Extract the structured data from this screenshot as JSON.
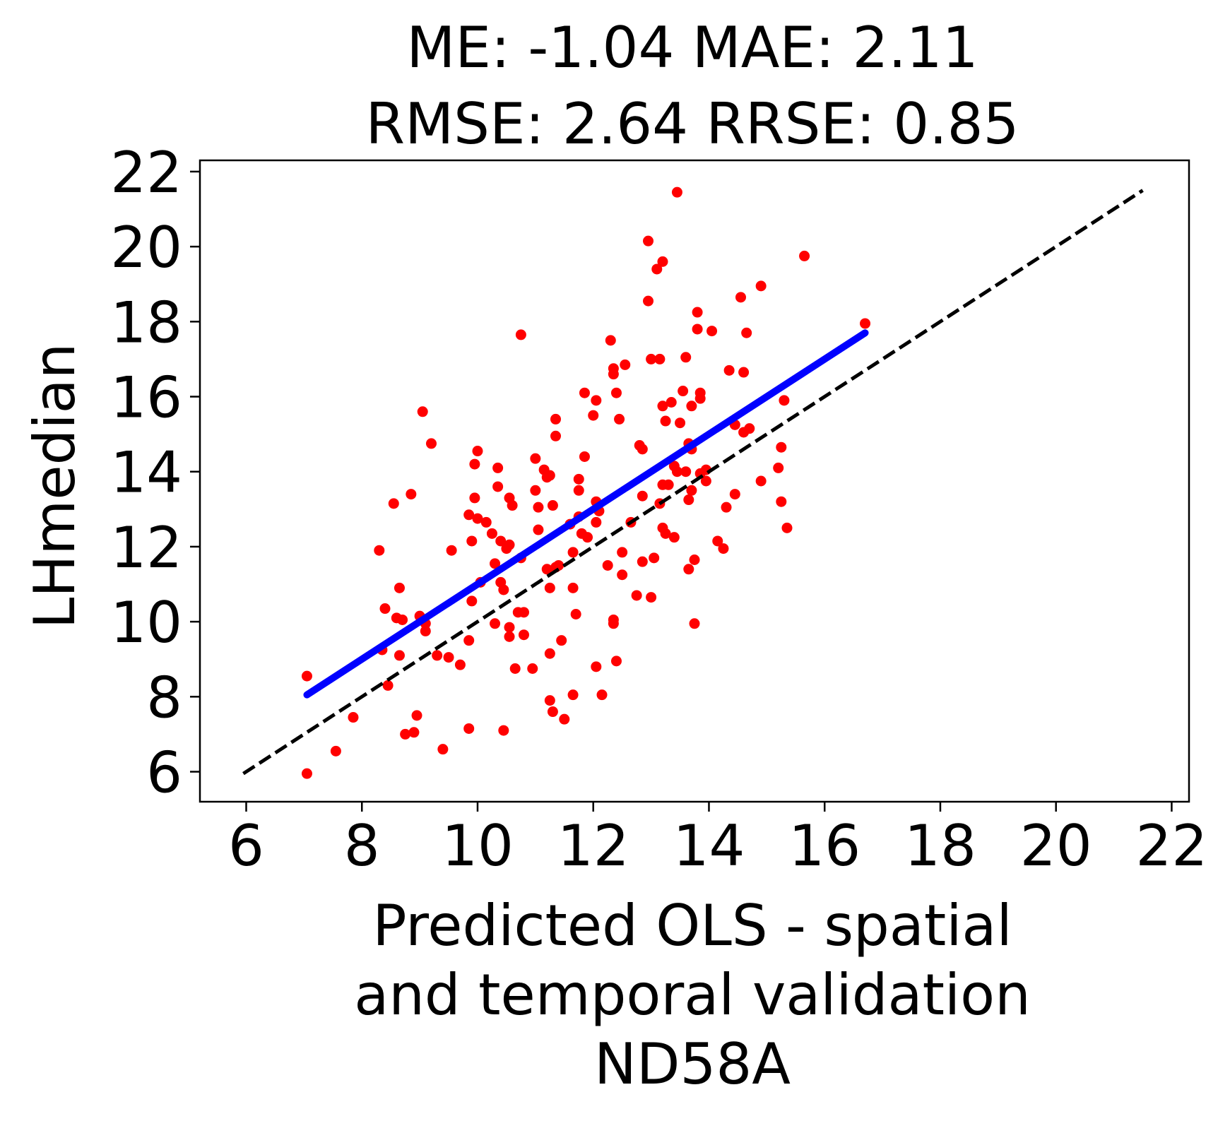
{
  "colors": {
    "points": "#ff0000",
    "fit_line": "#0000ff",
    "identity_line": "#000000",
    "frame": "#000000",
    "background": "#ffffff"
  },
  "chart_data": {
    "type": "scatter",
    "title_lines": [
      "ME: -1.04 MAE: 2.11",
      "RMSE: 2.64 RRSE: 0.85"
    ],
    "xlabel_lines": [
      "Predicted OLS - spatial",
      "and temporal validation",
      "ND58A"
    ],
    "ylabel": "LHmedian",
    "xlim": [
      5.2,
      22.3
    ],
    "ylim": [
      5.2,
      22.3
    ],
    "xticks": [
      6,
      8,
      10,
      12,
      14,
      16,
      18,
      20,
      22
    ],
    "yticks": [
      6,
      8,
      10,
      12,
      14,
      16,
      18,
      20,
      22
    ],
    "grid": false,
    "legend": "none",
    "fit_line": {
      "x": [
        7.05,
        16.7
      ],
      "y": [
        8.05,
        17.7
      ]
    },
    "identity_line": {
      "x": [
        5.95,
        21.5
      ],
      "y": [
        5.95,
        21.5
      ]
    },
    "points": [
      [
        7.05,
        8.55
      ],
      [
        7.05,
        5.95
      ],
      [
        7.55,
        6.55
      ],
      [
        7.85,
        7.45
      ],
      [
        8.3,
        11.9
      ],
      [
        8.35,
        9.25
      ],
      [
        8.4,
        10.35
      ],
      [
        8.45,
        8.3
      ],
      [
        8.55,
        13.15
      ],
      [
        8.6,
        10.1
      ],
      [
        8.65,
        9.1
      ],
      [
        8.65,
        10.9
      ],
      [
        8.7,
        10.05
      ],
      [
        8.75,
        7.0
      ],
      [
        8.85,
        13.4
      ],
      [
        8.9,
        7.05
      ],
      [
        8.95,
        7.5
      ],
      [
        9.0,
        10.15
      ],
      [
        9.05,
        15.6
      ],
      [
        9.1,
        9.75
      ],
      [
        9.1,
        9.95
      ],
      [
        9.2,
        14.75
      ],
      [
        9.3,
        9.1
      ],
      [
        9.4,
        6.6
      ],
      [
        9.5,
        9.05
      ],
      [
        9.55,
        11.9
      ],
      [
        9.7,
        8.85
      ],
      [
        9.85,
        9.5
      ],
      [
        9.85,
        7.15
      ],
      [
        9.85,
        12.85
      ],
      [
        9.9,
        12.15
      ],
      [
        9.9,
        10.55
      ],
      [
        9.95,
        14.2
      ],
      [
        9.95,
        13.3
      ],
      [
        10.0,
        14.55
      ],
      [
        10.0,
        12.75
      ],
      [
        10.05,
        11.05
      ],
      [
        10.15,
        12.65
      ],
      [
        10.25,
        12.35
      ],
      [
        10.3,
        9.95
      ],
      [
        10.3,
        11.55
      ],
      [
        10.35,
        14.1
      ],
      [
        10.35,
        13.6
      ],
      [
        10.4,
        12.15
      ],
      [
        10.4,
        11.05
      ],
      [
        10.45,
        10.85
      ],
      [
        10.45,
        7.1
      ],
      [
        10.5,
        11.95
      ],
      [
        10.55,
        13.3
      ],
      [
        10.55,
        12.05
      ],
      [
        10.55,
        9.6
      ],
      [
        10.55,
        9.85
      ],
      [
        10.6,
        13.1
      ],
      [
        10.65,
        8.75
      ],
      [
        10.7,
        10.25
      ],
      [
        10.75,
        11.7
      ],
      [
        10.75,
        17.65
      ],
      [
        10.8,
        10.25
      ],
      [
        10.8,
        9.65
      ],
      [
        10.95,
        8.75
      ],
      [
        11.0,
        14.35
      ],
      [
        11.0,
        13.5
      ],
      [
        11.05,
        13.05
      ],
      [
        11.05,
        12.45
      ],
      [
        11.15,
        14.05
      ],
      [
        11.2,
        13.85
      ],
      [
        11.2,
        11.4
      ],
      [
        11.25,
        13.9
      ],
      [
        11.25,
        10.9
      ],
      [
        11.25,
        9.15
      ],
      [
        11.25,
        7.9
      ],
      [
        11.3,
        13.1
      ],
      [
        11.3,
        7.6
      ],
      [
        11.35,
        15.4
      ],
      [
        11.35,
        14.95
      ],
      [
        11.35,
        11.45
      ],
      [
        11.4,
        11.5
      ],
      [
        11.45,
        9.5
      ],
      [
        11.5,
        7.4
      ],
      [
        11.6,
        12.6
      ],
      [
        11.65,
        11.85
      ],
      [
        11.65,
        10.9
      ],
      [
        11.65,
        8.05
      ],
      [
        11.7,
        10.2
      ],
      [
        11.75,
        13.8
      ],
      [
        11.75,
        13.5
      ],
      [
        11.75,
        12.8
      ],
      [
        11.8,
        12.35
      ],
      [
        11.85,
        16.1
      ],
      [
        11.85,
        14.4
      ],
      [
        11.9,
        12.25
      ],
      [
        12.0,
        15.5
      ],
      [
        12.05,
        15.9
      ],
      [
        12.05,
        13.2
      ],
      [
        12.05,
        12.65
      ],
      [
        12.05,
        8.8
      ],
      [
        12.1,
        12.95
      ],
      [
        12.15,
        8.05
      ],
      [
        12.25,
        11.5
      ],
      [
        12.3,
        17.5
      ],
      [
        12.35,
        16.75
      ],
      [
        12.35,
        16.6
      ],
      [
        12.35,
        10.05
      ],
      [
        12.35,
        9.95
      ],
      [
        12.4,
        16.1
      ],
      [
        12.4,
        8.95
      ],
      [
        12.45,
        15.4
      ],
      [
        12.5,
        11.85
      ],
      [
        12.5,
        11.25
      ],
      [
        12.55,
        16.85
      ],
      [
        12.65,
        12.65
      ],
      [
        12.75,
        10.7
      ],
      [
        12.8,
        14.7
      ],
      [
        12.85,
        14.6
      ],
      [
        12.85,
        13.35
      ],
      [
        12.85,
        11.6
      ],
      [
        12.95,
        18.55
      ],
      [
        12.95,
        20.15
      ],
      [
        13.0,
        17.0
      ],
      [
        13.0,
        10.65
      ],
      [
        13.05,
        11.7
      ],
      [
        13.1,
        19.4
      ],
      [
        13.15,
        17.0
      ],
      [
        13.15,
        13.15
      ],
      [
        13.2,
        19.6
      ],
      [
        13.2,
        15.75
      ],
      [
        13.2,
        13.65
      ],
      [
        13.2,
        12.5
      ],
      [
        13.25,
        15.35
      ],
      [
        13.25,
        12.35
      ],
      [
        13.3,
        13.65
      ],
      [
        13.35,
        15.85
      ],
      [
        13.4,
        14.15
      ],
      [
        13.4,
        12.25
      ],
      [
        13.45,
        21.45
      ],
      [
        13.45,
        14.0
      ],
      [
        13.5,
        15.3
      ],
      [
        13.55,
        16.15
      ],
      [
        13.6,
        14.0
      ],
      [
        13.6,
        17.05
      ],
      [
        13.65,
        14.75
      ],
      [
        13.65,
        13.25
      ],
      [
        13.65,
        11.4
      ],
      [
        13.7,
        15.75
      ],
      [
        13.7,
        14.6
      ],
      [
        13.7,
        13.5
      ],
      [
        13.75,
        11.65
      ],
      [
        13.75,
        9.95
      ],
      [
        13.8,
        18.25
      ],
      [
        13.8,
        17.8
      ],
      [
        13.85,
        16.1
      ],
      [
        13.85,
        15.95
      ],
      [
        13.85,
        13.95
      ],
      [
        13.95,
        14.05
      ],
      [
        13.95,
        13.75
      ],
      [
        14.05,
        17.75
      ],
      [
        14.15,
        12.15
      ],
      [
        14.25,
        11.95
      ],
      [
        14.3,
        13.05
      ],
      [
        14.35,
        16.7
      ],
      [
        14.45,
        15.25
      ],
      [
        14.45,
        13.4
      ],
      [
        14.55,
        18.65
      ],
      [
        14.6,
        16.65
      ],
      [
        14.6,
        15.05
      ],
      [
        14.65,
        17.7
      ],
      [
        14.7,
        15.15
      ],
      [
        14.9,
        18.95
      ],
      [
        14.9,
        13.75
      ],
      [
        15.2,
        14.1
      ],
      [
        15.25,
        14.65
      ],
      [
        15.25,
        13.2
      ],
      [
        15.3,
        15.9
      ],
      [
        15.35,
        12.5
      ],
      [
        15.65,
        19.75
      ],
      [
        16.7,
        17.95
      ]
    ]
  }
}
